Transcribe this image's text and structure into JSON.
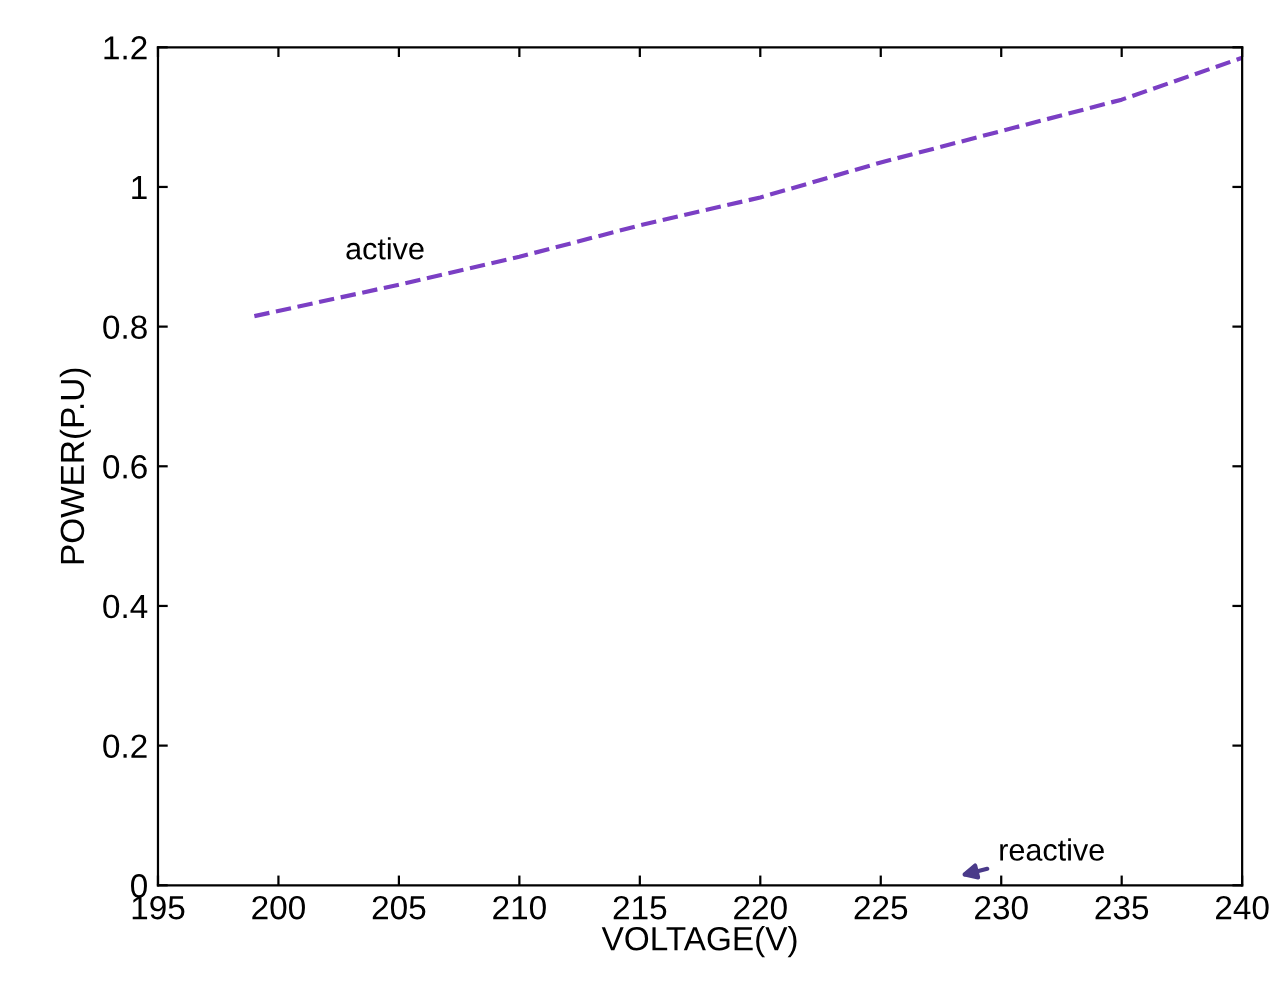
{
  "chart_data": {
    "type": "line",
    "xlabel": "VOLTAGE(V)",
    "ylabel": "POWER(P.U)",
    "x": [
      199,
      205,
      210,
      215,
      220,
      225,
      230,
      235,
      240
    ],
    "series": [
      {
        "color": "#7b3fc4",
        "values": [
          0.815,
          0.86,
          0.9,
          0.945,
          0.985,
          1.035,
          1.08,
          1.125,
          1.185
        ]
      }
    ],
    "line_style": "dashed",
    "xlim": [
      195,
      240
    ],
    "xticks": [
      195,
      200,
      205,
      210,
      215,
      220,
      225,
      230,
      235,
      240
    ],
    "ylim": [
      0,
      1.2
    ],
    "yticks": [
      0,
      0.2,
      0.4,
      0.6,
      0.8,
      {
        "value": 1,
        "label": "1"
      },
      1.2
    ],
    "annotations": [
      {
        "text": "active",
        "x": 205,
        "y": 0.86
      },
      "reactive"
    ]
  }
}
